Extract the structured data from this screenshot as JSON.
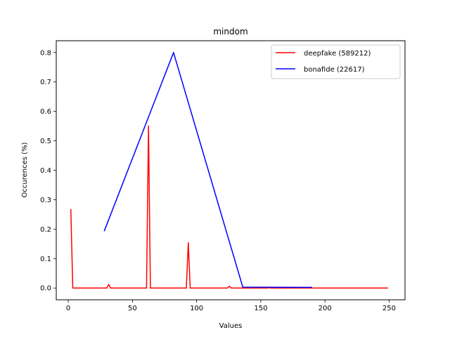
{
  "chart_data": {
    "type": "line",
    "title": "mindom",
    "xlabel": "Values",
    "ylabel": "Occurences (%)",
    "xlim": [
      -9.35,
      262.35
    ],
    "ylim": [
      -0.04,
      0.84
    ],
    "xticks": [
      0,
      50,
      100,
      150,
      200,
      250
    ],
    "yticks": [
      0.0,
      0.1,
      0.2,
      0.3,
      0.4,
      0.5,
      0.6,
      0.7,
      0.8
    ],
    "ytick_labels": [
      "0.0",
      "0.1",
      "0.2",
      "0.3",
      "0.4",
      "0.5",
      "0.6",
      "0.7",
      "0.8"
    ],
    "grid": false,
    "legend_position": "top-right",
    "series": [
      {
        "name": "deepfake (589212)",
        "color": "#ff0000",
        "x": [
          2,
          3.5,
          30,
          31.5,
          33,
          61,
          62.5,
          64,
          92,
          93.5,
          95,
          124,
          125.5,
          127,
          155,
          156.5,
          158,
          249
        ],
        "y": [
          0.268,
          0.0,
          0.0,
          0.012,
          0.0,
          0.0,
          0.551,
          0.0,
          0.0,
          0.154,
          0.0,
          0.0,
          0.006,
          0.0,
          0.0,
          0.001,
          0.0,
          0.0
        ]
      },
      {
        "name": "bonafide (22617)",
        "color": "#0000ff",
        "x": [
          28,
          82,
          136,
          190
        ],
        "y": [
          0.193,
          0.8,
          0.003,
          0.002
        ]
      }
    ]
  }
}
